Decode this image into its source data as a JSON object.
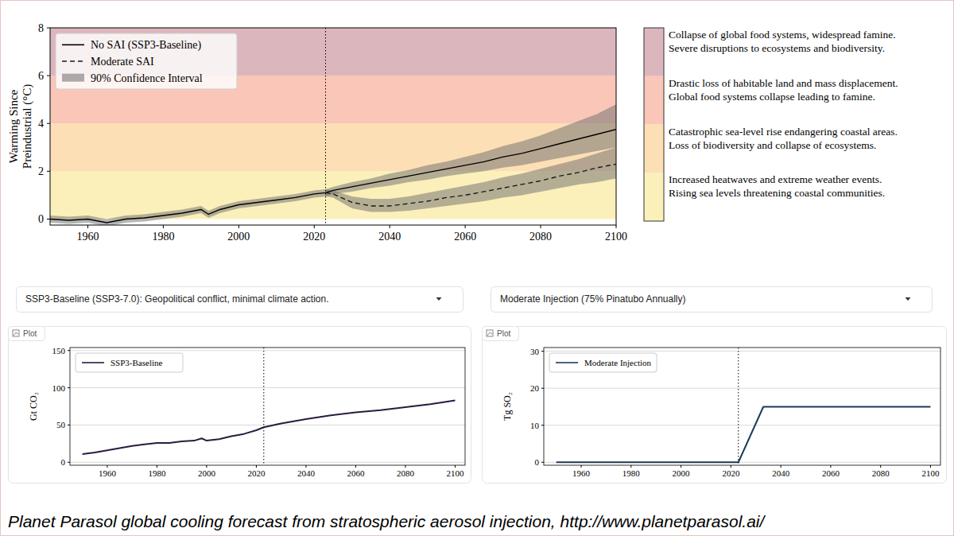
{
  "chart_data": [
    {
      "type": "line",
      "ylabel": [
        "Warming Since",
        "Preindustrial (°C)"
      ],
      "x": [
        1950,
        1955,
        1960,
        1965,
        1970,
        1975,
        1980,
        1985,
        1990,
        1992,
        1995,
        2000,
        2005,
        2010,
        2015,
        2020,
        2023,
        2025,
        2030,
        2035,
        2040,
        2045,
        2050,
        2055,
        2060,
        2065,
        2070,
        2075,
        2080,
        2085,
        2090,
        2095,
        2100
      ],
      "series": [
        {
          "name": "No SAI (SSP3-Baseline)",
          "color": "#000000",
          "line_style": "solid",
          "values": [
            0.0,
            -0.05,
            0.0,
            -0.15,
            0.0,
            0.05,
            0.15,
            0.25,
            0.4,
            0.2,
            0.4,
            0.6,
            0.7,
            0.8,
            0.9,
            1.05,
            1.1,
            1.2,
            1.35,
            1.5,
            1.65,
            1.8,
            1.95,
            2.1,
            2.25,
            2.4,
            2.6,
            2.75,
            2.95,
            3.15,
            3.35,
            3.55,
            3.75
          ],
          "lower": [
            -0.15,
            -0.2,
            -0.15,
            -0.3,
            -0.15,
            -0.1,
            0.0,
            0.1,
            0.25,
            0.05,
            0.25,
            0.45,
            0.55,
            0.65,
            0.75,
            0.9,
            0.95,
            1.05,
            1.15,
            1.3,
            1.4,
            1.55,
            1.65,
            1.8,
            1.9,
            2.0,
            2.15,
            2.25,
            2.4,
            2.55,
            2.7,
            2.85,
            3.0
          ],
          "upper": [
            0.15,
            0.1,
            0.15,
            0.0,
            0.15,
            0.2,
            0.3,
            0.4,
            0.55,
            0.35,
            0.55,
            0.75,
            0.85,
            0.95,
            1.05,
            1.2,
            1.25,
            1.35,
            1.55,
            1.7,
            1.9,
            2.05,
            2.25,
            2.4,
            2.6,
            2.8,
            3.05,
            3.25,
            3.5,
            3.8,
            4.1,
            4.4,
            4.8
          ]
        },
        {
          "name": "Moderate SAI",
          "color": "#1a1a1a",
          "line_style": "dashed",
          "values": [
            null,
            null,
            null,
            null,
            null,
            null,
            null,
            null,
            null,
            null,
            null,
            null,
            null,
            null,
            null,
            null,
            1.1,
            1.05,
            0.7,
            0.55,
            0.55,
            0.65,
            0.75,
            0.9,
            1.0,
            1.15,
            1.3,
            1.45,
            1.6,
            1.8,
            1.95,
            2.15,
            2.3
          ],
          "lower": [
            null,
            null,
            null,
            null,
            null,
            null,
            null,
            null,
            null,
            null,
            null,
            null,
            null,
            null,
            null,
            null,
            0.95,
            0.9,
            0.45,
            0.3,
            0.3,
            0.35,
            0.45,
            0.55,
            0.65,
            0.75,
            0.9,
            1.0,
            1.15,
            1.3,
            1.45,
            1.55,
            1.7
          ],
          "upper": [
            null,
            null,
            null,
            null,
            null,
            null,
            null,
            null,
            null,
            null,
            null,
            null,
            null,
            null,
            null,
            null,
            1.25,
            1.2,
            0.95,
            0.85,
            0.85,
            0.95,
            1.1,
            1.25,
            1.4,
            1.55,
            1.75,
            1.9,
            2.1,
            2.3,
            2.5,
            2.75,
            3.0
          ]
        }
      ],
      "band_label": "90% Confidence Interval",
      "band_color": "#6b6b6b",
      "xlim": [
        1950,
        2100
      ],
      "ylim": [
        -0.25,
        8
      ],
      "xticks": [
        1960,
        1980,
        2000,
        2020,
        2040,
        2060,
        2080,
        2100
      ],
      "yticks": [
        0,
        2,
        4,
        6,
        8
      ],
      "grid": false,
      "legend": "upper left",
      "vline": 2023,
      "zones": [
        {
          "from": 0,
          "to": 2,
          "color": "#fbf0ba",
          "label": [
            "Increased heatwaves and extreme weather events.",
            "Rising sea levels threatening coastal communities."
          ]
        },
        {
          "from": 2,
          "to": 4,
          "color": "#fcdfb5",
          "label": [
            "Catastrophic sea-level rise endangering coastal areas.",
            "Loss of biodiversity and collapse of ecosystems."
          ]
        },
        {
          "from": 4,
          "to": 6,
          "color": "#f9c6b8",
          "label": [
            "Drastic loss of habitable land and mass displacement.",
            "Global food systems collapse leading to famine."
          ]
        },
        {
          "from": 6,
          "to": 8,
          "color": "#dbb7bd",
          "label": [
            "Collapse of global food systems, widespread famine.",
            "Severe disruptions to ecosystems and biodiversity."
          ]
        }
      ]
    },
    {
      "type": "line",
      "ylabel": "Gt CO₂",
      "x": [
        1950,
        1955,
        1960,
        1965,
        1970,
        1975,
        1980,
        1985,
        1990,
        1995,
        1998,
        2000,
        2005,
        2010,
        2015,
        2020,
        2023,
        2030,
        2040,
        2050,
        2060,
        2070,
        2080,
        2090,
        2100
      ],
      "series": [
        {
          "name": "SSP3-Baseline",
          "color": "#2b1b3f",
          "line_style": "solid",
          "values": [
            11,
            13,
            16,
            19,
            22,
            24,
            26,
            26,
            28,
            29,
            32,
            29,
            31,
            35,
            38,
            43,
            47,
            52,
            58,
            63,
            67,
            70,
            74,
            78,
            83
          ]
        }
      ],
      "xlim": [
        1945,
        2104
      ],
      "ylim": [
        -4,
        154
      ],
      "xticks": [
        1960,
        1980,
        2000,
        2020,
        2040,
        2060,
        2080,
        2100
      ],
      "yticks": [
        0,
        50,
        100,
        150
      ],
      "grid": true,
      "legend": "upper left",
      "vline": 2023
    },
    {
      "type": "line",
      "ylabel": "Tg SO₂",
      "x": [
        1950,
        2023,
        2033,
        2100
      ],
      "series": [
        {
          "name": "Moderate Injection",
          "color": "#1f3a5a",
          "line_style": "solid",
          "values": [
            0,
            0,
            15,
            15
          ]
        }
      ],
      "xlim": [
        1945,
        2104
      ],
      "ylim": [
        -0.8,
        31
      ],
      "xticks": [
        1960,
        1980,
        2000,
        2020,
        2040,
        2060,
        2080,
        2100
      ],
      "yticks": [
        0,
        10,
        20,
        30
      ],
      "grid": true,
      "legend": "upper left",
      "vline": 2023
    }
  ],
  "controls": [
    "SSP3-Baseline (SSP3-7.0): Geopolitical conflict, minimal climate action.",
    "Moderate Injection (75% Pinatubo Annually)"
  ],
  "panel_tag": "Plot",
  "caption": "Planet Parasol global cooling forecast from stratospheric aerosol injection, http://www.planetparasol.ai/"
}
